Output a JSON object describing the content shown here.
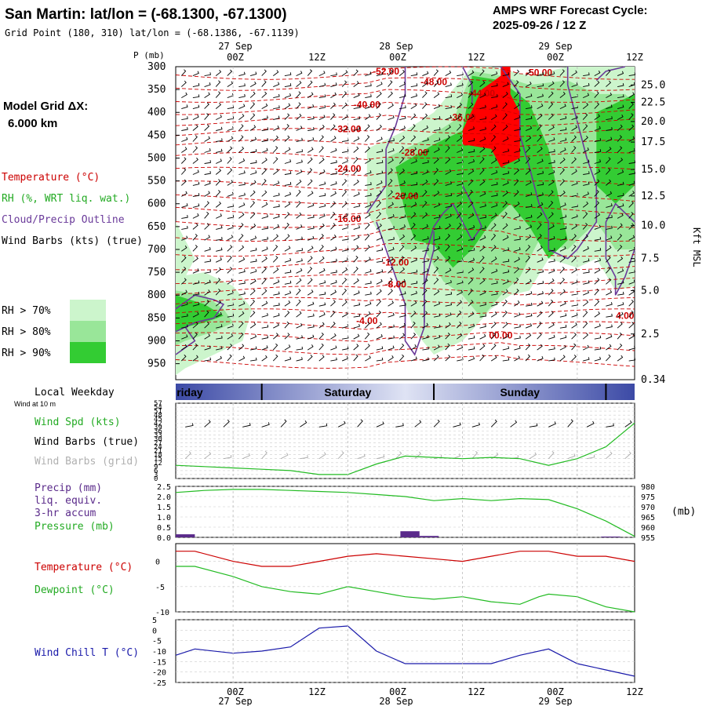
{
  "header": {
    "station_title": "San Martin:  lat/lon = (-68.1300, -67.1300)",
    "grid_point": "Grid Point (180, 310) lat/lon = (-68.1386, -67.1139)",
    "cycle_line1": "AMPS WRF Forecast Cycle:",
    "cycle_line2": "2025-09-26 / 12  Z"
  },
  "time_axis": {
    "ticks": [
      "00Z",
      "12Z",
      "00Z",
      "12Z",
      "00Z",
      "12Z"
    ],
    "dates": [
      "27 Sep",
      "28 Sep",
      "29 Sep"
    ],
    "weekdays": [
      "riday",
      "Saturday",
      "Sunday"
    ]
  },
  "left_legend": {
    "model_grid_label": "Model Grid ΔX:",
    "model_grid_value": "6.000 km",
    "temperature": "Temperature (°C)",
    "rh": "RH (%, WRT liq. wat.)",
    "cloud": "Cloud/Precip Outline",
    "wind_barbs": "Wind Barbs (kts) (true)",
    "rh70": "RH > 70%",
    "rh80": "RH > 80%",
    "rh90": "RH > 90%",
    "local_weekday": "Local Weekday",
    "wind_at_10m": "Wind at 10 m",
    "wind_spd": "Wind Spd (kts)",
    "wind_barbs_true": "Wind Barbs (true)",
    "wind_barbs_grid": "Wind Barbs (grid)",
    "precip": "Precip (mm)",
    "liq_equiv": "liq. equiv.",
    "accum": "3-hr accum",
    "pressure": "Pressure (mb)",
    "temp2": "Temperature (°C)",
    "dewpoint": "Dewpoint (°C)",
    "wind_chill": "Wind Chill T (°C)"
  },
  "colors": {
    "temperature": "#cc0000",
    "dewpoint": "#22bb22",
    "windchill": "#1a1aaa",
    "precip": "#5a2a8a",
    "rh70": "#ccf5cc",
    "rh80": "#99e699",
    "rh90": "#33cc33",
    "cloud": "#6a3a9a",
    "frozen": "#ff0000"
  },
  "chart_data": [
    {
      "type": "cross-section",
      "ylabel": "P (mb)",
      "y_ticks": [
        "300",
        "350",
        "400",
        "450",
        "500",
        "550",
        "600",
        "650",
        "700",
        "750",
        "800",
        "850",
        "900",
        "950"
      ],
      "right_label": "Kft MSL",
      "right_ticks": [
        "25.0",
        "22.5",
        "20.0",
        "17.5",
        "15.0",
        "12.5",
        "10.0",
        "7.5",
        "5.0",
        "2.5",
        "0.34"
      ],
      "right_tick_p": [
        340,
        378,
        420,
        465,
        525,
        583,
        648,
        720,
        790,
        885,
        985
      ],
      "isotherms": [
        {
          "label": "-52.00",
          "t": 22,
          "p": 317
        },
        {
          "label": "-48.00",
          "t": 27,
          "p": 340
        },
        {
          "label": "-44.00",
          "t": 32,
          "p": 365
        },
        {
          "label": "-40.00",
          "t": 20,
          "p": 390
        },
        {
          "label": "-36.00",
          "t": 30,
          "p": 418
        },
        {
          "label": "-32.00",
          "t": 18,
          "p": 443
        },
        {
          "label": "-28.00",
          "t": 25,
          "p": 495
        },
        {
          "label": "-24.00",
          "t": 18,
          "p": 530
        },
        {
          "label": "-20.00",
          "t": 24,
          "p": 590
        },
        {
          "label": "-16.00",
          "t": 18,
          "p": 640
        },
        {
          "label": "-12.00",
          "t": 23,
          "p": 735
        },
        {
          "label": "-8.00",
          "t": 23,
          "p": 783
        },
        {
          "label": "-4.00",
          "t": 20,
          "p": 863
        },
        {
          "label": "00.00",
          "t": 34,
          "p": 895
        },
        {
          "label": "-50.00",
          "t": 38,
          "p": 320
        },
        {
          "label": "4.00",
          "t": 47,
          "p": 852
        }
      ]
    },
    {
      "type": "line",
      "name": "wind_speed",
      "y_ticks": [
        "57",
        "54",
        "51",
        "48",
        "45",
        "42",
        "39",
        "36",
        "33",
        "30",
        "27",
        "24",
        "21",
        "18",
        "15",
        "12",
        "9",
        "6",
        "3",
        "0"
      ],
      "ylim": [
        0,
        57
      ],
      "x": [
        0,
        3,
        6,
        9,
        12,
        15,
        18,
        21,
        24,
        27,
        30,
        33,
        36,
        39,
        42,
        45,
        48
      ],
      "values": [
        10,
        9,
        8,
        7,
        6,
        3,
        3,
        11,
        17,
        16,
        15,
        16,
        15,
        10,
        15,
        24,
        42
      ]
    },
    {
      "type": "line",
      "name": "pressure",
      "y_left_ticks": [
        "2.5",
        "2.0",
        "1.5",
        "1.0",
        "0.5",
        "0.0"
      ],
      "y_right_ticks": [
        "980",
        "975",
        "970",
        "965",
        "960",
        "955"
      ],
      "ylim_left": [
        0,
        2.5
      ],
      "ylim_right": [
        955,
        980
      ],
      "x": [
        0,
        3,
        6,
        9,
        12,
        15,
        18,
        21,
        24,
        27,
        30,
        33,
        36,
        39,
        42,
        45,
        48
      ],
      "pressure_values": [
        977,
        978,
        978.5,
        978.5,
        978,
        977.5,
        977,
        976,
        975,
        973,
        974,
        973,
        974,
        973.5,
        969,
        963,
        955.5
      ],
      "precip_bars": [
        {
          "t0": 0,
          "t1": 2,
          "v": 0.15
        },
        {
          "t0": 23.5,
          "t1": 25.5,
          "v": 0.3
        },
        {
          "t0": 25.5,
          "t1": 27.5,
          "v": 0.07
        },
        {
          "t0": 44.5,
          "t1": 46.5,
          "v": 0.04
        }
      ]
    },
    {
      "type": "line",
      "name": "temperature_dewpoint",
      "y_ticks": [
        "0",
        "-5",
        "-10"
      ],
      "ylim": [
        -10,
        3.5
      ],
      "x": [
        0,
        2,
        6,
        9,
        12,
        15,
        18,
        21,
        24,
        27,
        30,
        33,
        36,
        38,
        39,
        42,
        45,
        48
      ],
      "temperature": [
        2,
        2,
        0,
        -1,
        -1,
        0,
        1,
        1.5,
        1,
        0.5,
        0,
        1,
        2,
        2,
        2,
        1,
        1,
        0
      ],
      "dewpoint": [
        -1,
        -1,
        -3,
        -5,
        -6,
        -6.5,
        -5,
        -6,
        -7,
        -7.5,
        -7,
        -8,
        -8.5,
        -7,
        -6.5,
        -7,
        -9,
        -10
      ]
    },
    {
      "type": "line",
      "name": "wind_chill",
      "y_ticks": [
        "5",
        "0",
        "-5",
        "-10",
        "-15",
        "-20",
        "-25"
      ],
      "ylim": [
        -25,
        5
      ],
      "x": [
        0,
        2,
        6,
        9,
        12,
        15,
        18,
        21,
        24,
        27,
        30,
        33,
        36,
        39,
        42,
        45,
        48
      ],
      "values": [
        -12,
        -9,
        -11,
        -10,
        -8,
        1,
        2,
        -10,
        -16,
        -16,
        -16,
        -16,
        -12,
        -9,
        -16,
        -19,
        -22
      ]
    }
  ]
}
